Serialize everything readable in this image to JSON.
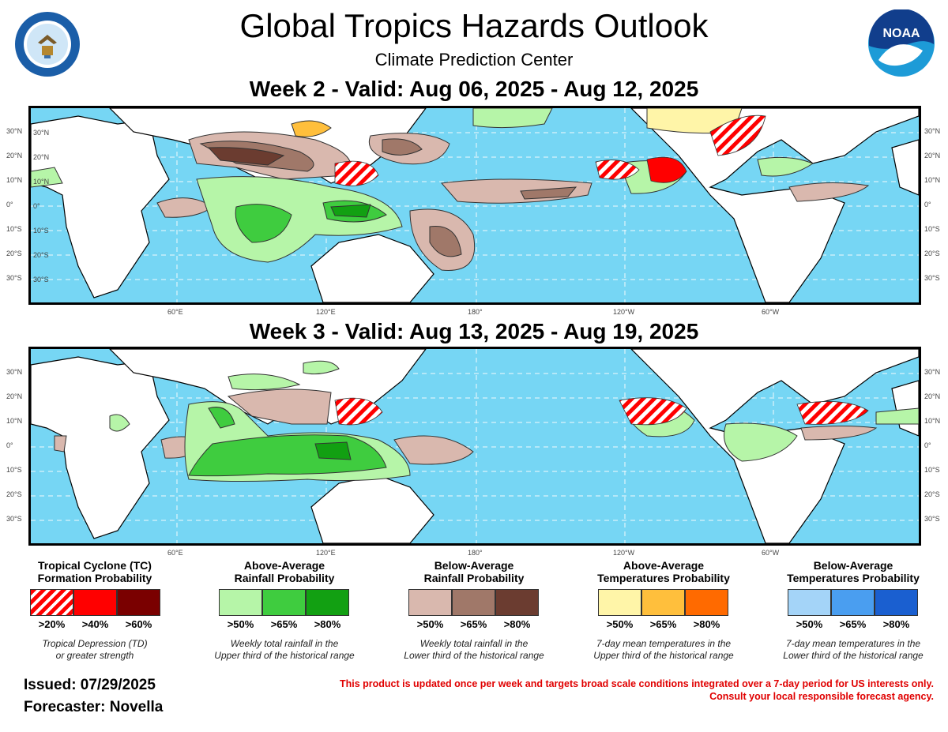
{
  "header": {
    "title": "Global Tropics Hazards Outlook",
    "subtitle": "Climate Prediction Center",
    "left_logo": "department-of-commerce-seal",
    "right_logo_text": "NOAA"
  },
  "maps": {
    "week2": {
      "title": "Week 2 - Valid: Aug 06, 2025 - Aug 12, 2025"
    },
    "week3": {
      "title": "Week 3 - Valid: Aug 13, 2025 - Aug 19, 2025"
    },
    "lat_labels": [
      "30°N",
      "20°N",
      "10°N",
      "0°",
      "10°S",
      "20°S",
      "30°S"
    ],
    "lon_labels": [
      "60°E",
      "120°E",
      "180°",
      "120°W",
      "60°W"
    ]
  },
  "legend": {
    "tc": {
      "title1": "Tropical Cyclone (TC)",
      "title2": "Formation Probability",
      "labels": [
        ">20%",
        ">40%",
        ">60%"
      ],
      "colors": [
        "hatch-red",
        "#ff0000",
        "#7a0000"
      ],
      "note1": "Tropical Depression (TD)",
      "note2": "or greater strength"
    },
    "rain_above": {
      "title1": "Above-Average",
      "title2": "Rainfall Probability",
      "labels": [
        ">50%",
        ">65%",
        ">80%"
      ],
      "colors": [
        "#b6f5a8",
        "#3fcc3f",
        "#12a012"
      ],
      "note1": "Weekly total rainfall in the",
      "note2": "Upper third of the historical range"
    },
    "rain_below": {
      "title1": "Below-Average",
      "title2": "Rainfall Probability",
      "labels": [
        ">50%",
        ">65%",
        ">80%"
      ],
      "colors": [
        "#d9b8ae",
        "#a07869",
        "#6b3c30"
      ],
      "note1": "Weekly total rainfall in the",
      "note2": "Lower third of the historical range"
    },
    "temp_above": {
      "title1": "Above-Average",
      "title2": "Temperatures Probability",
      "labels": [
        ">50%",
        ">65%",
        ">80%"
      ],
      "colors": [
        "#fff5a8",
        "#ffbf3c",
        "#ff6a00"
      ],
      "note1": "7-day mean temperatures in the",
      "note2": "Upper third of the historical range"
    },
    "temp_below": {
      "title1": "Below-Average",
      "title2": "Temperatures Probability",
      "labels": [
        ">50%",
        ">65%",
        ">80%"
      ],
      "colors": [
        "#a4d4f8",
        "#4a9ef0",
        "#1a5fd0"
      ],
      "note1": "7-day mean temperatures in the",
      "note2": "Lower third of the historical range"
    }
  },
  "footer": {
    "issued": "Issued: 07/29/2025",
    "forecaster": "Forecaster: Novella",
    "disclaimer1": "This product is updated once per week and targets broad scale conditions integrated over a 7-day period for US interests only.",
    "disclaimer2": "Consult your local responsible forecast agency."
  },
  "colors": {
    "ocean": "#76d6f4",
    "land": "#ffffff",
    "tc_hatch": "#ff0000"
  }
}
